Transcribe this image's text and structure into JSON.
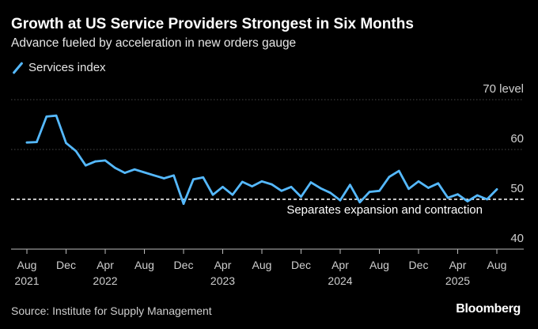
{
  "header": {
    "title": "Growth at US Service Providers Strongest in Six Months",
    "subtitle": "Advance fueled by acceleration in new orders gauge"
  },
  "footer": {
    "source": "Source: Institute for Supply Management",
    "brand": "Bloomberg"
  },
  "colors": {
    "series": "#55b9ff",
    "background": "#000000",
    "grid": "#4a4a4a"
  },
  "chart_data": {
    "type": "line",
    "title": "Growth at US Service Providers Strongest in Six Months",
    "subtitle": "Advance fueled by acceleration in new orders gauge",
    "ylim": [
      40,
      70
    ],
    "y_ticks": [
      {
        "value": 70,
        "label": "70 level"
      },
      {
        "value": 60,
        "label": "60"
      },
      {
        "value": 50,
        "label": "50"
      },
      {
        "value": 40,
        "label": "40"
      }
    ],
    "x_ticks": [
      {
        "date": "2021-08",
        "month": "Aug",
        "year": "2021"
      },
      {
        "date": "2021-12",
        "month": "Dec",
        "year": ""
      },
      {
        "date": "2022-04",
        "month": "Apr",
        "year": "2022"
      },
      {
        "date": "2022-08",
        "month": "Aug",
        "year": ""
      },
      {
        "date": "2022-12",
        "month": "Dec",
        "year": ""
      },
      {
        "date": "2023-04",
        "month": "Apr",
        "year": "2023"
      },
      {
        "date": "2023-08",
        "month": "Aug",
        "year": ""
      },
      {
        "date": "2023-12",
        "month": "Dec",
        "year": ""
      },
      {
        "date": "2024-04",
        "month": "Apr",
        "year": "2024"
      },
      {
        "date": "2024-08",
        "month": "Aug",
        "year": ""
      },
      {
        "date": "2024-12",
        "month": "Dec",
        "year": ""
      },
      {
        "date": "2025-04",
        "month": "Apr",
        "year": "2025"
      },
      {
        "date": "2025-08",
        "month": "Aug",
        "year": ""
      }
    ],
    "grid": true,
    "legend": "top-left",
    "reference_line": {
      "value": 50,
      "label": "Separates expansion and contraction",
      "style": "dashed"
    },
    "series": [
      {
        "name": "Services index",
        "x": [
          "2021-08",
          "2021-09",
          "2021-10",
          "2021-11",
          "2021-12",
          "2022-01",
          "2022-02",
          "2022-03",
          "2022-04",
          "2022-05",
          "2022-06",
          "2022-07",
          "2022-08",
          "2022-09",
          "2022-10",
          "2022-11",
          "2022-12",
          "2023-01",
          "2023-02",
          "2023-03",
          "2023-04",
          "2023-05",
          "2023-06",
          "2023-07",
          "2023-08",
          "2023-09",
          "2023-10",
          "2023-11",
          "2023-12",
          "2024-01",
          "2024-02",
          "2024-03",
          "2024-04",
          "2024-05",
          "2024-06",
          "2024-07",
          "2024-08",
          "2024-09",
          "2024-10",
          "2024-11",
          "2024-12",
          "2025-01",
          "2025-02",
          "2025-03",
          "2025-04",
          "2025-05",
          "2025-06",
          "2025-07",
          "2025-08"
        ],
        "values": [
          61.4,
          61.5,
          66.6,
          66.8,
          61.3,
          59.7,
          56.8,
          57.6,
          57.8,
          56.3,
          55.3,
          56.0,
          55.4,
          54.8,
          54.2,
          54.8,
          49.1,
          54.0,
          54.4,
          50.9,
          52.5,
          50.9,
          53.5,
          52.6,
          53.6,
          53.0,
          51.7,
          52.5,
          50.5,
          53.4,
          52.2,
          51.3,
          49.8,
          52.9,
          49.4,
          51.5,
          51.7,
          54.5,
          55.7,
          52.1,
          53.6,
          52.3,
          53.2,
          50.3,
          51.0,
          49.6,
          50.8,
          50.0,
          52.0
        ]
      }
    ]
  },
  "legend_items": [
    "Services index"
  ]
}
